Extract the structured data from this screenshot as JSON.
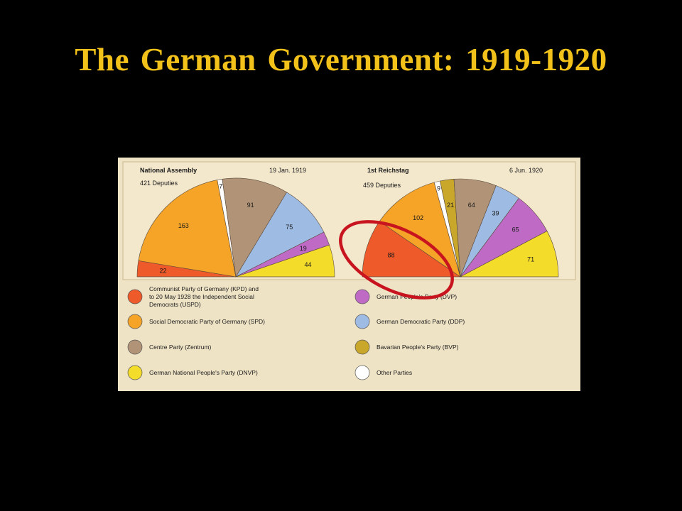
{
  "title": "The German Government:  1919-1920",
  "colors": {
    "KPD_USPD": "#ee5a2a",
    "SPD": "#f6a428",
    "Zentrum": "#b19478",
    "DNVP": "#f4dc2a",
    "DVP": "#bf6bc6",
    "DDP": "#9ebbe3",
    "BVP": "#c9a72b",
    "Other": "#ffffff",
    "highlight": "#c8141e"
  },
  "legend_items": [
    {
      "key": "KPD_USPD",
      "lines": [
        "Communist Party of Germany (KPD) and",
        "to 20 May 1928 the Independent Social",
        "Democrats (USPD)"
      ]
    },
    {
      "key": "SPD",
      "lines": [
        "Social Democratic Party of Germany (SPD)"
      ]
    },
    {
      "key": "Zentrum",
      "lines": [
        "Centre Party (Zentrum)"
      ]
    },
    {
      "key": "DNVP",
      "lines": [
        "German National People's Party (DNVP)"
      ]
    },
    {
      "key": "DVP",
      "lines": [
        "German People's Party (DVP)"
      ]
    },
    {
      "key": "DDP",
      "lines": [
        "German Democratic Party (DDP)"
      ]
    },
    {
      "key": "BVP",
      "lines": [
        "Bavarian People's Party (BVP)"
      ]
    },
    {
      "key": "Other",
      "lines": [
        "Other Parties"
      ]
    }
  ],
  "chart_data": [
    {
      "type": "pie",
      "subtype": "semicircle",
      "title": "National Assembly",
      "date": "19 Jan. 1919",
      "subtitle": "421 Deputies",
      "total": 421,
      "slices": [
        {
          "key": "KPD_USPD",
          "value": 22
        },
        {
          "key": "SPD",
          "value": 163
        },
        {
          "key": "Other",
          "value": 7
        },
        {
          "key": "Zentrum",
          "value": 91
        },
        {
          "key": "DDP",
          "value": 75
        },
        {
          "key": "DVP",
          "value": 19
        },
        {
          "key": "DNVP",
          "value": 44
        }
      ],
      "labels": [
        "22",
        "163",
        "7",
        "91",
        "75",
        "19",
        "44"
      ]
    },
    {
      "type": "pie",
      "subtype": "semicircle",
      "title": "1st Reichstag",
      "date": "6 Jun. 1920",
      "subtitle": "459 Deputies",
      "total": 459,
      "slices": [
        {
          "key": "KPD_USPD",
          "value": 88
        },
        {
          "key": "SPD",
          "value": 102
        },
        {
          "key": "Other",
          "value": 9
        },
        {
          "key": "BVP",
          "value": 21
        },
        {
          "key": "Zentrum",
          "value": 64
        },
        {
          "key": "DDP",
          "value": 39
        },
        {
          "key": "DVP",
          "value": 65
        },
        {
          "key": "DNVP",
          "value": 71
        }
      ],
      "labels": [
        "88",
        "102",
        "9",
        "21",
        "64",
        "39",
        "65",
        "71"
      ]
    }
  ]
}
